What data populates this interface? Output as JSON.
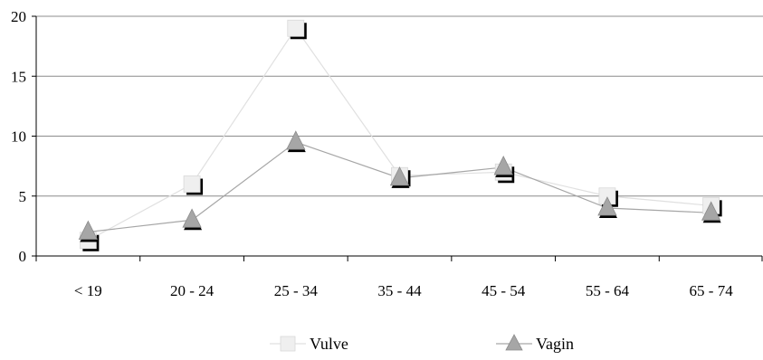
{
  "chart_data": {
    "type": "line",
    "title": "",
    "xlabel": "",
    "ylabel": "",
    "categories": [
      "< 19",
      "20 - 24",
      "25 - 34",
      "35 - 44",
      "45 - 54",
      "55 - 64",
      "65 - 74"
    ],
    "ylim": [
      0,
      20
    ],
    "yticks": [
      0,
      5,
      10,
      15,
      20
    ],
    "grid": true,
    "legend": "bottom",
    "series": [
      {
        "name": "Vulve",
        "marker": "square",
        "line_color": "#e0e0e0",
        "marker_color": "#efefef",
        "values": [
          1.3,
          6.0,
          19.0,
          6.7,
          7.0,
          5.0,
          4.2
        ]
      },
      {
        "name": "Vagin",
        "marker": "triangle",
        "line_color": "#a6a6a6",
        "marker_color": "#a6a6a6",
        "values": [
          2.0,
          3.0,
          9.5,
          6.5,
          7.4,
          4.0,
          3.6
        ]
      }
    ]
  }
}
